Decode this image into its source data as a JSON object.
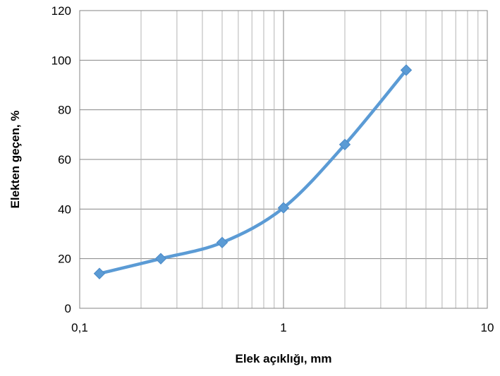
{
  "chart_data": {
    "type": "line",
    "title": "",
    "xlabel": "Elek açıklığı, mm",
    "ylabel": "Elekten geçen, %",
    "x_scale": "log",
    "xlim": [
      0.1,
      10
    ],
    "ylim": [
      0,
      120
    ],
    "x_ticks": [
      0.1,
      1,
      10
    ],
    "x_tick_labels": [
      "0,1",
      "1",
      "10"
    ],
    "y_ticks": [
      0,
      20,
      40,
      60,
      80,
      100,
      120
    ],
    "y_tick_labels": [
      "0",
      "20",
      "40",
      "60",
      "80",
      "100",
      "120"
    ],
    "grid": true,
    "legend": "none",
    "series": [
      {
        "color": "#5B9BD5",
        "marker": "diamond",
        "smooth": true,
        "x": [
          0.125,
          0.25,
          0.5,
          1,
          2,
          4
        ],
        "y": [
          14,
          20,
          26.5,
          40.5,
          66,
          96
        ]
      }
    ]
  }
}
